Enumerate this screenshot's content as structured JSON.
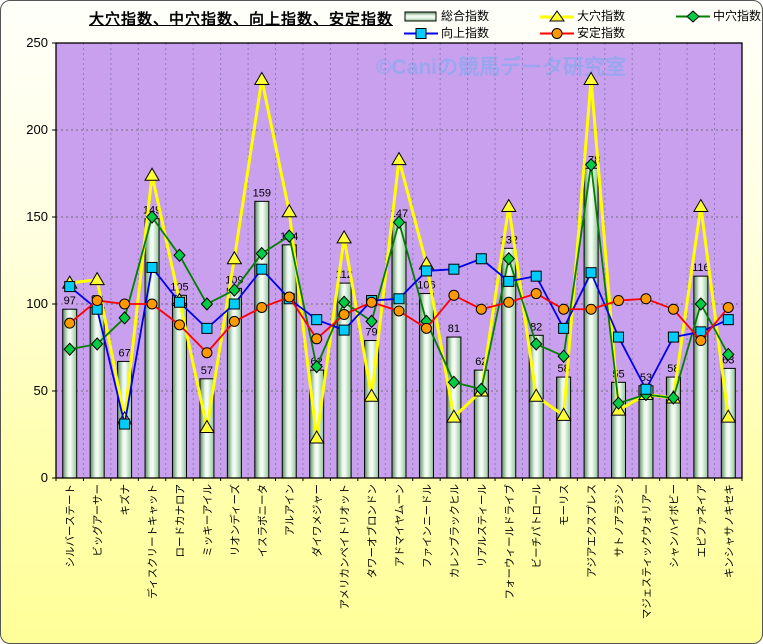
{
  "title": "大穴指数、中穴指数、向上指数、安定指数",
  "watermark": "©Caniの競馬データ研究室",
  "chart_data": {
    "type": "bar",
    "subtype": "combo-bar-line",
    "title": "大穴指数、中穴指数、向上指数、安定指数",
    "xlabel": "",
    "ylabel": "",
    "ylim": [
      0,
      250
    ],
    "yticks": [
      0,
      50,
      100,
      150,
      200,
      250
    ],
    "grid": true,
    "legend_position": "top-right",
    "categories": [
      "シルバーステート",
      "ビッグアーサー",
      "キズナ",
      "ディスクリートキャット",
      "ロードカナロア",
      "ミッキーアイル",
      "リオンディーズ",
      "イスラボニータ",
      "アルアイン",
      "ダイワメジャー",
      "アメリカンペイトリオット",
      "タワーオブロンドン",
      "アドマイヤムーン",
      "ファインニードル",
      "カレンブラックヒル",
      "リアルスティール",
      "フォーウィールドライブ",
      "ビーチパトロール",
      "モーリス",
      "アジアエクスプレス",
      "サトノアラジン",
      "マジェスティックウォリアー",
      "シャンハイボビー",
      "エピファネイア",
      "キンシャサノキセキ"
    ],
    "bar_series": {
      "name": "総合指数",
      "values": [
        97,
        98,
        67,
        149,
        105,
        57,
        109,
        159,
        134,
        62,
        112,
        79,
        147,
        106,
        81,
        62,
        132,
        82,
        58,
        178,
        55,
        53,
        58,
        116,
        63
      ]
    },
    "line_series": [
      {
        "name": "大穴指数",
        "marker": "triangle",
        "color": "#FFFF00",
        "marker_fill": "#FFFF33",
        "line_width": 3,
        "values": [
          112,
          114,
          34,
          174,
          102,
          29,
          126,
          229,
          153,
          23,
          138,
          47,
          183,
          123,
          35,
          50,
          156,
          47,
          36,
          229,
          39,
          48,
          46,
          156,
          35
        ]
      },
      {
        "name": "中穴指数",
        "marker": "diamond",
        "color": "#008000",
        "marker_fill": "#00CC44",
        "line_width": 1.8,
        "values": [
          74,
          77,
          92,
          150,
          128,
          100,
          108,
          129,
          139,
          64,
          101,
          90,
          147,
          90,
          55,
          51,
          126,
          77,
          70,
          180,
          43,
          48,
          46,
          100,
          71
        ]
      },
      {
        "name": "向上指数",
        "marker": "square",
        "color": "#0000EE",
        "marker_fill": "#00CCFF",
        "line_width": 1.8,
        "values": [
          110,
          97,
          31,
          121,
          101,
          86,
          100,
          120,
          103,
          91,
          85,
          102,
          103,
          119,
          120,
          126,
          113,
          116,
          86,
          118,
          81,
          51,
          81,
          84,
          91
        ]
      },
      {
        "name": "安定指数",
        "marker": "circle",
        "color": "#FF0000",
        "marker_fill": "#FF9900",
        "line_width": 1.8,
        "values": [
          89,
          102,
          100,
          100,
          88,
          72,
          90,
          98,
          104,
          80,
          94,
          101,
          96,
          86,
          105,
          97,
          101,
          106,
          97,
          97,
          102,
          103,
          97,
          79,
          98
        ]
      }
    ],
    "colors": {
      "plot_bg": "#C9A0EE",
      "h_grid": "#6f6f6f",
      "v_grid": "#8E79B8",
      "frame": "#000000",
      "bar_edge_dark": "#5B8E63",
      "bar_mid_light": "#EAF7EA",
      "bar_center": "#F6FCF6",
      "bar_edge_right": "#8FC596",
      "watermark": "#8FA8EE",
      "label_text": "#000000"
    }
  }
}
